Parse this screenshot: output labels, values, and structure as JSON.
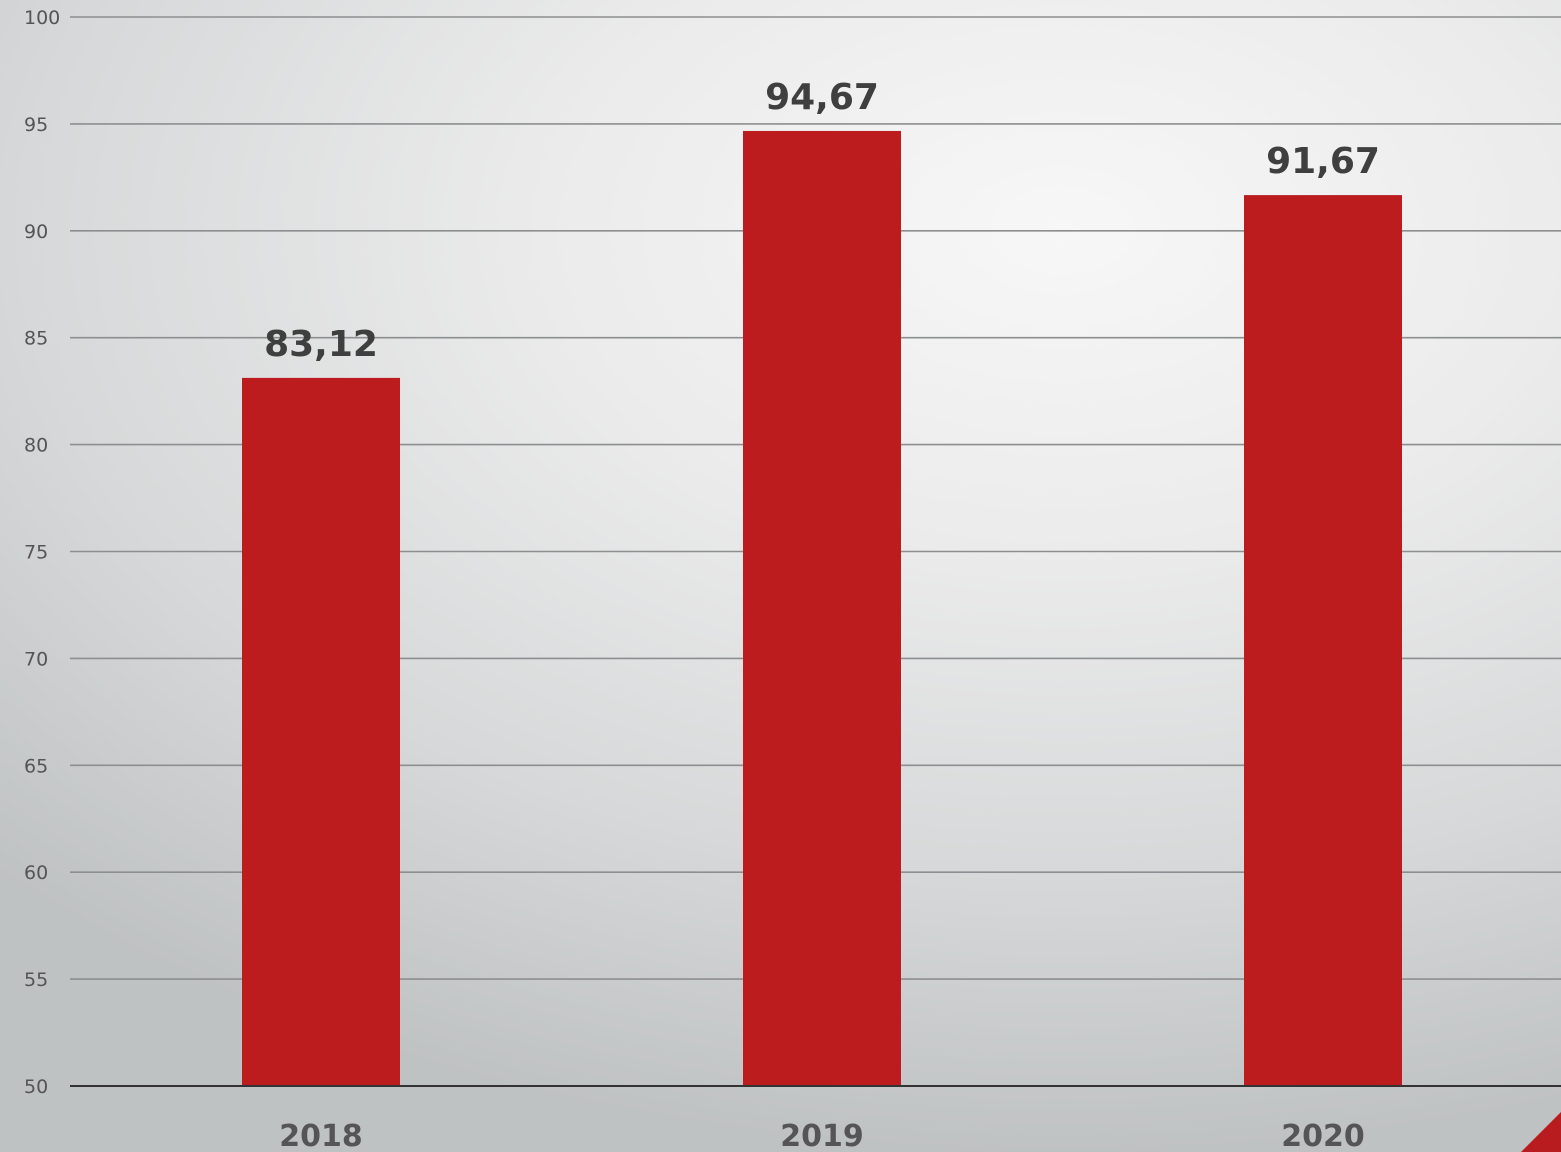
{
  "chart_data": {
    "type": "bar",
    "title": "",
    "xlabel": "",
    "ylabel": "",
    "categories": [
      "2018",
      "2019",
      "2020"
    ],
    "values": [
      83.12,
      94.67,
      91.67
    ],
    "data_labels": [
      "83,12",
      "94,67",
      "91,67"
    ],
    "ylim": [
      50,
      100
    ],
    "yticks": [
      50,
      55,
      60,
      65,
      70,
      75,
      80,
      85,
      90,
      95,
      100
    ],
    "ytick_labels": [
      "50",
      "55",
      "60",
      "65",
      "70",
      "75",
      "80",
      "85",
      "90",
      "95",
      "100"
    ],
    "grid": true,
    "legend": "none",
    "bar_color": "#bc1c1e",
    "grid_color": "#8c8e90",
    "axis_color": "#333333",
    "label_color": "#3f3f3f",
    "tick_color": "#555555"
  }
}
